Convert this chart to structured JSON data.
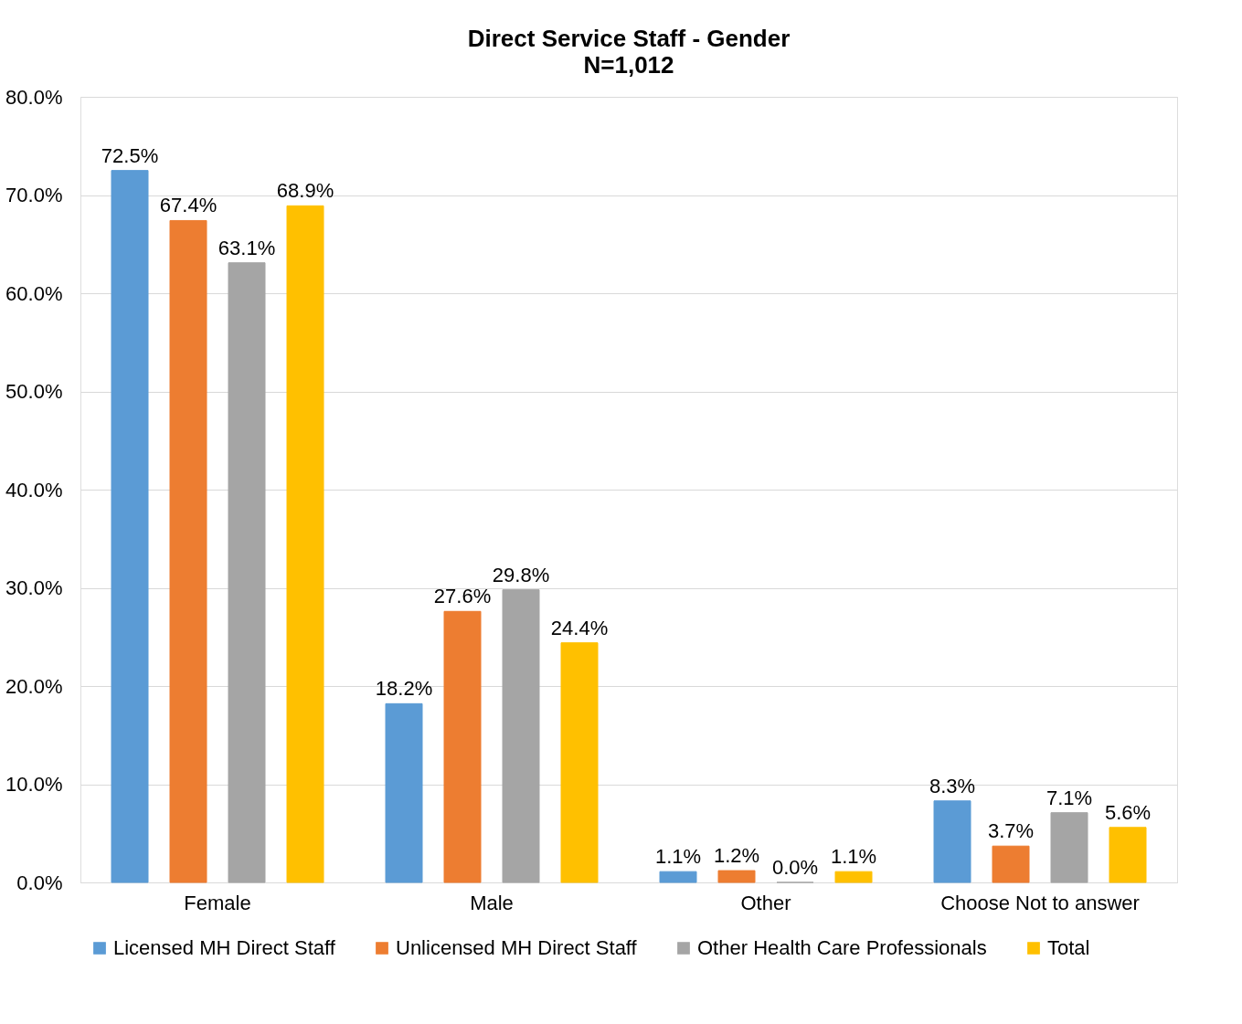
{
  "chart_data": {
    "type": "bar",
    "title": "Direct Service Staff - Gender",
    "subtitle": "N=1,012",
    "categories": [
      "Female",
      "Male",
      "Other",
      "Choose Not to answer"
    ],
    "series": [
      {
        "name": "Licensed MH Direct Staff",
        "color": "#5b9bd5",
        "values": [
          72.5,
          18.2,
          1.1,
          8.3
        ],
        "value_labels": [
          "72.5%",
          "18.2%",
          "1.1%",
          "8.3%"
        ]
      },
      {
        "name": "Unlicensed MH Direct Staff",
        "color": "#ed7d31",
        "values": [
          67.4,
          27.6,
          1.2,
          3.7
        ],
        "value_labels": [
          "67.4%",
          "27.6%",
          "1.2%",
          "3.7%"
        ]
      },
      {
        "name": "Other Health Care Professionals",
        "color": "#a5a5a5",
        "values": [
          63.1,
          29.8,
          0.0,
          7.1
        ],
        "value_labels": [
          "63.1%",
          "29.8%",
          "0.0%",
          "7.1%"
        ]
      },
      {
        "name": "Total",
        "color": "#ffc000",
        "values": [
          68.9,
          24.4,
          1.1,
          5.6
        ],
        "value_labels": [
          "68.9%",
          "24.4%",
          "1.1%",
          "5.6%"
        ]
      }
    ],
    "ylim": [
      0,
      80
    ],
    "yticks": [
      {
        "value": 0,
        "label": "0.0%"
      },
      {
        "value": 10,
        "label": "10.0%"
      },
      {
        "value": 20,
        "label": "20.0%"
      },
      {
        "value": 30,
        "label": "30.0%"
      },
      {
        "value": 40,
        "label": "40.0%"
      },
      {
        "value": 50,
        "label": "50.0%"
      },
      {
        "value": 60,
        "label": "60.0%"
      },
      {
        "value": 70,
        "label": "70.0%"
      },
      {
        "value": 80,
        "label": "80.0%"
      }
    ],
    "grid": "y",
    "legend": "bottom"
  }
}
